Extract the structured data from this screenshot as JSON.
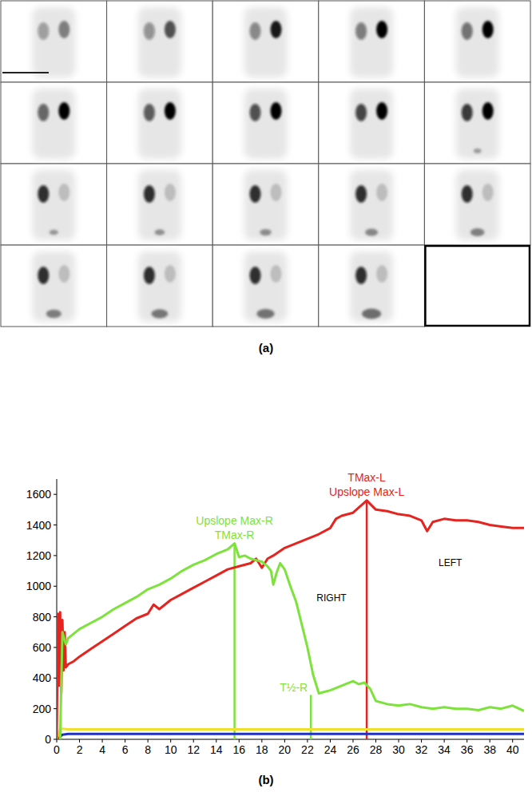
{
  "panel_labels": [
    "(a)",
    "(b)"
  ],
  "chart_data": {
    "type": "line",
    "xlim": [
      0,
      41
    ],
    "xticks": [
      0,
      2,
      4,
      6,
      8,
      10,
      12,
      14,
      16,
      18,
      20,
      22,
      24,
      26,
      28,
      30,
      32,
      34,
      36,
      38,
      40
    ],
    "ylim": [
      0,
      1700
    ],
    "yticks": [
      0,
      200,
      400,
      600,
      800,
      1000,
      1200,
      1400,
      1600
    ],
    "grid": false,
    "series": [
      {
        "name": "RIGHT",
        "color": "#7de33c",
        "x": [
          0.3,
          0.5,
          0.8,
          1,
          1.5,
          2,
          3,
          4,
          5,
          6,
          7,
          8,
          9,
          10,
          11,
          12,
          13,
          14,
          15,
          15.6,
          16,
          16.5,
          17,
          17.5,
          18,
          18.5,
          18.8,
          19,
          19.3,
          19.6,
          20,
          20.5,
          21,
          21.5,
          22,
          22.5,
          23,
          23.5,
          24,
          25,
          26,
          26.5,
          27,
          27.5,
          28,
          29,
          30,
          31,
          32,
          33,
          34,
          35,
          36,
          37,
          38,
          39,
          40,
          41
        ],
        "values": [
          0,
          700,
          620,
          660,
          690,
          720,
          760,
          800,
          850,
          890,
          930,
          980,
          1010,
          1050,
          1100,
          1140,
          1170,
          1210,
          1240,
          1280,
          1190,
          1200,
          1180,
          1170,
          1160,
          1130,
          1100,
          1010,
          1090,
          1150,
          1110,
          1000,
          900,
          750,
          600,
          420,
          300,
          310,
          320,
          350,
          380,
          360,
          370,
          330,
          250,
          230,
          220,
          230,
          210,
          200,
          210,
          200,
          200,
          190,
          210,
          200,
          220,
          185
        ]
      },
      {
        "name": "LEFT",
        "color": "#e52420",
        "x": [
          0,
          0.1,
          0.2,
          0.3,
          0.4,
          0.5,
          0.6,
          0.7,
          0.8,
          1,
          1.5,
          2,
          3,
          4,
          5,
          6,
          7,
          8,
          8.5,
          9,
          10,
          11,
          12,
          13,
          14,
          15,
          16,
          17,
          17.5,
          18,
          18.5,
          19,
          20,
          21,
          22,
          23,
          24,
          24.5,
          25,
          26,
          27.2,
          28,
          29,
          30,
          31,
          32,
          32.5,
          33,
          34,
          35,
          36,
          37,
          38,
          39,
          40,
          41
        ],
        "values": [
          0,
          820,
          350,
          830,
          300,
          780,
          450,
          700,
          470,
          490,
          510,
          540,
          590,
          640,
          690,
          740,
          790,
          820,
          880,
          850,
          910,
          950,
          990,
          1030,
          1070,
          1110,
          1130,
          1150,
          1180,
          1120,
          1180,
          1200,
          1250,
          1280,
          1310,
          1340,
          1380,
          1440,
          1460,
          1480,
          1560,
          1500,
          1490,
          1470,
          1460,
          1430,
          1360,
          1420,
          1440,
          1430,
          1430,
          1420,
          1400,
          1390,
          1380,
          1380
        ]
      },
      {
        "color": "#f0e030",
        "x": [
          0,
          0.3,
          1,
          41
        ],
        "values": [
          0,
          70,
          65,
          65
        ]
      },
      {
        "color": "#2030c0",
        "x": [
          0,
          0.5,
          1,
          41
        ],
        "values": [
          0,
          30,
          35,
          35
        ]
      }
    ],
    "annotations": [
      {
        "labels": [
          "Upslope Max-R",
          "TMax-R"
        ],
        "x": 15.6,
        "y": 1280,
        "color": "#7de33c"
      },
      {
        "labels": [
          "T½-R"
        ],
        "x": 22.3,
        "y": 290,
        "color": "#7de33c"
      },
      {
        "labels": [
          "TMax-L",
          "Upslope Max-L"
        ],
        "x": 27.2,
        "y": 1560,
        "color": "#e52420"
      }
    ]
  }
}
